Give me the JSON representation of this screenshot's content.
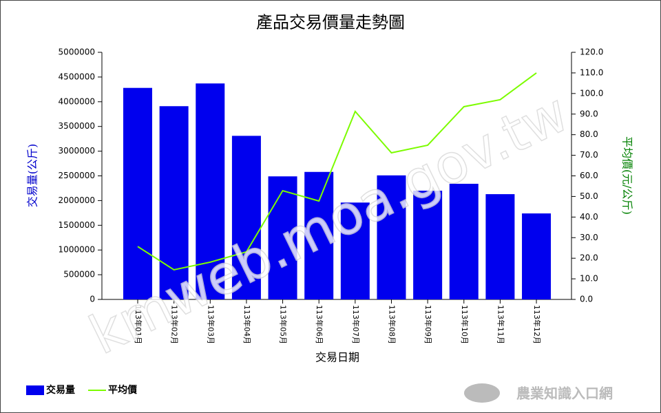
{
  "chart_data": {
    "type": "bar_line",
    "title": "產品交易價量走勢圖",
    "x_label": "交易日期",
    "y_label": "交易量(公斤)",
    "y2_label": "平均價(元/公斤)",
    "watermark": "kmweb.moa.gov.tw",
    "logo_text": "農業知識入口網",
    "categories": [
      "113年01月",
      "113年02月",
      "113年03月",
      "113年04月",
      "113年05月",
      "113年06月",
      "113年07月",
      "113年08月",
      "113年09月",
      "113年10月",
      "113年11月",
      "113年12月"
    ],
    "series": [
      {
        "name": "交易量",
        "type": "bar",
        "color": "#0000ee",
        "values": [
          4280000,
          3910000,
          4370000,
          3310000,
          2490000,
          2580000,
          1960000,
          2510000,
          2200000,
          2340000,
          2130000,
          1740000
        ]
      },
      {
        "name": "平均價",
        "type": "line",
        "axis": "y2",
        "color": "#7cfc00",
        "values": [
          25.7,
          14.4,
          18.1,
          23.1,
          52.8,
          47.8,
          91.3,
          71.2,
          74.9,
          93.6,
          97.0,
          110.0
        ]
      }
    ],
    "ylim": [
      0,
      5000000
    ],
    "yticks": [
      0,
      500000,
      1000000,
      1500000,
      2000000,
      2500000,
      3000000,
      3500000,
      4000000,
      4500000,
      5000000
    ],
    "y2lim": [
      0,
      120
    ],
    "y2ticks": [
      {
        "value": 0,
        "label": "0.0"
      },
      {
        "value": 10,
        "label": "10.0"
      },
      {
        "value": 20,
        "label": "20.0"
      },
      {
        "value": 30,
        "label": "30.0"
      },
      {
        "value": 40,
        "label": "40.0"
      },
      {
        "value": 50,
        "label": "50.0"
      },
      {
        "value": 60,
        "label": "60.0"
      },
      {
        "value": 70,
        "label": "70.0"
      },
      {
        "value": 80,
        "label": "80.0"
      },
      {
        "value": 90,
        "label": "90.0"
      },
      {
        "value": 100,
        "label": "100.0"
      },
      {
        "value": 110,
        "label": "110.0"
      },
      {
        "value": 120,
        "label": "120.0"
      }
    ],
    "y_label_color": "#0000cc",
    "y2_label_color": "#008000",
    "legend": "bottom-left"
  }
}
